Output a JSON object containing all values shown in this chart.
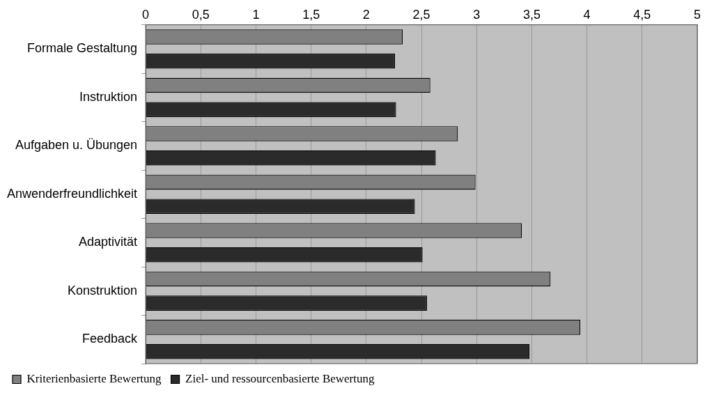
{
  "chart_data": {
    "type": "bar",
    "orientation": "horizontal",
    "categories": [
      "Formale Gestaltung",
      "Instruktion",
      "Aufgaben u. Übungen",
      "Anwenderfreundlichkeit",
      "Adaptivität",
      "Konstruktion",
      "Feedback"
    ],
    "series": [
      {
        "name": "Kriterienbasierte Bewertung",
        "color": "#808080",
        "values": [
          2.33,
          2.58,
          2.83,
          2.99,
          3.41,
          3.67,
          3.94
        ]
      },
      {
        "name": "Ziel- und ressourcenbasierte Bewertung",
        "color": "#2b2b2b",
        "values": [
          2.26,
          2.27,
          2.63,
          2.44,
          2.51,
          2.55,
          3.48
        ]
      }
    ],
    "xlim": [
      0,
      5
    ],
    "xticks": [
      0,
      {
        "value": 0.5,
        "label": "0,5"
      },
      1,
      {
        "value": 1.5,
        "label": "1,5"
      },
      2,
      {
        "value": 2.5,
        "label": "2,5"
      },
      3,
      {
        "value": 3.5,
        "label": "3,5"
      },
      4,
      {
        "value": 4.5,
        "label": "4,5"
      },
      5
    ],
    "grid": "x",
    "legend": "bottom"
  }
}
